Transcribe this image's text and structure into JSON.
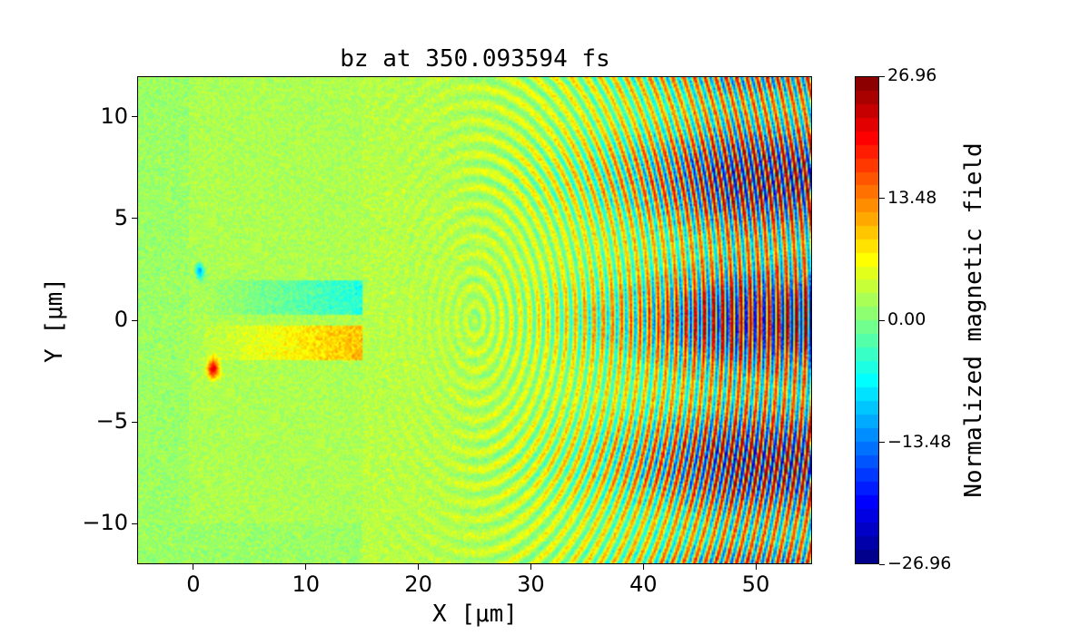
{
  "chart_data": {
    "type": "heatmap",
    "title": "bz at 350.093594 fs",
    "xlabel": "X [μm]",
    "ylabel": "Y [μm]",
    "xlim": [
      -5,
      55
    ],
    "ylim": [
      -12,
      12
    ],
    "xticks": [
      0,
      10,
      20,
      30,
      40,
      50
    ],
    "xtick_labels": [
      "0",
      "10",
      "20",
      "30",
      "40",
      "50"
    ],
    "yticks": [
      -10,
      -5,
      0,
      5,
      10
    ],
    "ytick_labels": [
      "−10",
      "−5",
      "0",
      "5",
      "10"
    ],
    "colormap": "jet",
    "colorbar": {
      "label": "Normalized magnetic field",
      "range": [
        -26.96,
        26.96
      ],
      "levels": 36,
      "ticks": [
        26.96,
        13.48,
        0.0,
        -13.48,
        -26.96
      ],
      "tick_labels": [
        "26.96",
        "13.48",
        "0.00",
        "−13.48",
        "−26.96"
      ]
    },
    "grid": false
  }
}
